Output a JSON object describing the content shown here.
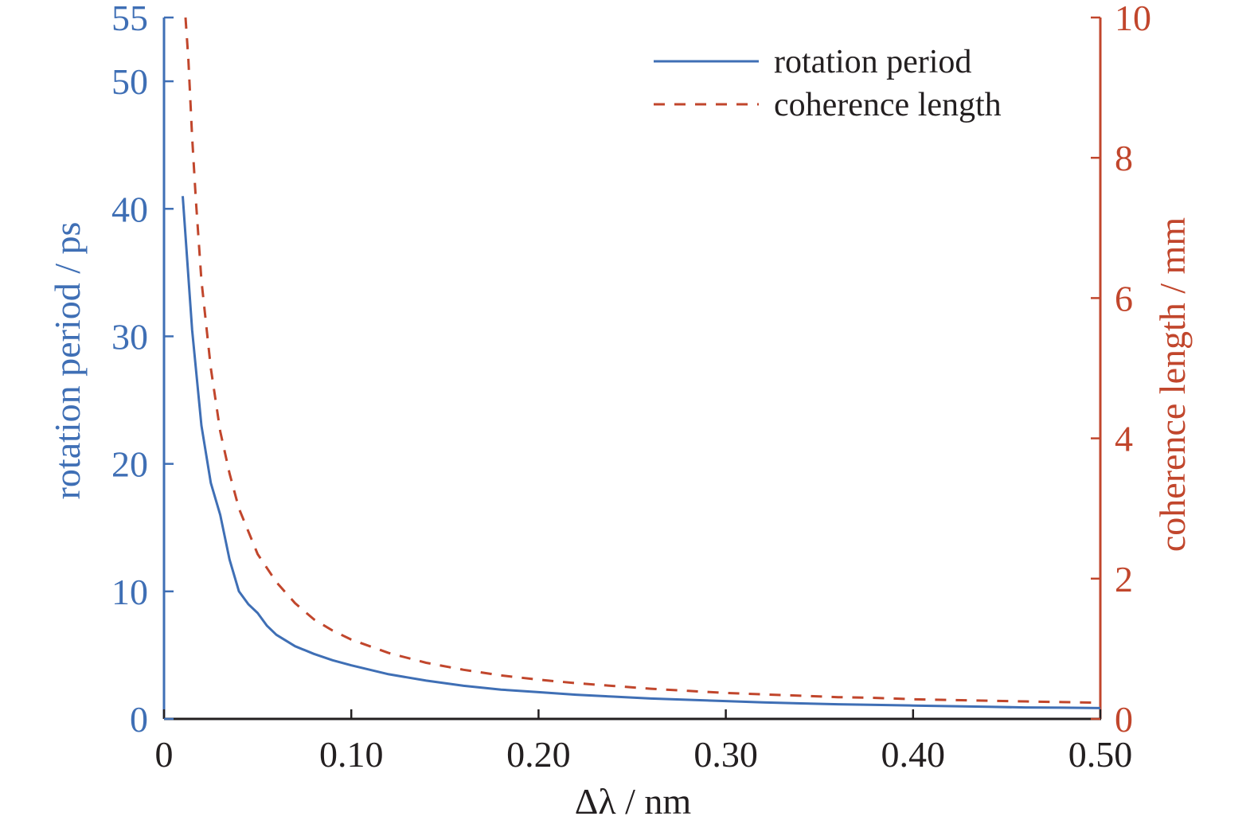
{
  "chart_data": {
    "type": "line",
    "title": "",
    "xlabel": "Δλ / nm",
    "ylabel_left": "rotation period / ps",
    "ylabel_right": "coherence length / mm",
    "xlim": [
      0,
      0.5
    ],
    "ylim_left": [
      0,
      55
    ],
    "ylim_right": [
      0,
      10
    ],
    "x_ticks": [
      0,
      0.1,
      0.2,
      0.3,
      0.4,
      0.5
    ],
    "x_tick_labels": [
      "0",
      "0.10",
      "0.20",
      "0.30",
      "0.40",
      "0.50"
    ],
    "y_left_ticks": [
      0,
      10,
      20,
      30,
      40,
      50,
      55
    ],
    "y_left_tick_labels": [
      "0",
      "10",
      "20",
      "30",
      "40",
      "50",
      "55"
    ],
    "y_right_ticks": [
      0,
      2,
      4,
      6,
      8,
      10
    ],
    "y_right_tick_labels": [
      "0",
      "2",
      "4",
      "6",
      "8",
      "10"
    ],
    "grid": false,
    "legend_position": "top-right",
    "colors": {
      "left_axis": "#3f6fb5",
      "right_axis": "#c1462c",
      "series_rotation": "#3f6fb5",
      "series_coherence": "#c1462c",
      "frame": "#231f20"
    },
    "series": [
      {
        "name": "rotation period",
        "axis": "left",
        "style": "solid",
        "x": [
          0.01,
          0.015,
          0.02,
          0.025,
          0.03,
          0.035,
          0.04,
          0.045,
          0.05,
          0.055,
          0.06,
          0.07,
          0.08,
          0.09,
          0.1,
          0.12,
          0.14,
          0.16,
          0.18,
          0.2,
          0.22,
          0.24,
          0.26,
          0.28,
          0.3,
          0.32,
          0.34,
          0.36,
          0.38,
          0.4,
          0.42,
          0.44,
          0.46,
          0.48,
          0.5
        ],
        "values": [
          41.0,
          30.5,
          23.0,
          18.5,
          16.0,
          12.5,
          10.0,
          9.0,
          8.3,
          7.3,
          6.6,
          5.7,
          5.1,
          4.6,
          4.2,
          3.5,
          3.0,
          2.6,
          2.3,
          2.1,
          1.9,
          1.75,
          1.6,
          1.5,
          1.4,
          1.3,
          1.22,
          1.15,
          1.1,
          1.05,
          1.0,
          0.95,
          0.9,
          0.88,
          0.85
        ]
      },
      {
        "name": "coherence length",
        "axis": "right",
        "style": "dashed",
        "x": [
          0.0115,
          0.013,
          0.015,
          0.017,
          0.02,
          0.025,
          0.03,
          0.035,
          0.04,
          0.05,
          0.06,
          0.07,
          0.08,
          0.09,
          0.1,
          0.12,
          0.14,
          0.16,
          0.18,
          0.2,
          0.22,
          0.24,
          0.26,
          0.28,
          0.3,
          0.32,
          0.34,
          0.36,
          0.38,
          0.4,
          0.42,
          0.44,
          0.46,
          0.48,
          0.5
        ],
        "values": [
          10.0,
          9.4,
          8.3,
          7.4,
          6.25,
          5.0,
          4.1,
          3.5,
          3.0,
          2.35,
          1.95,
          1.65,
          1.42,
          1.26,
          1.13,
          0.94,
          0.8,
          0.7,
          0.62,
          0.56,
          0.51,
          0.47,
          0.43,
          0.4,
          0.37,
          0.35,
          0.33,
          0.31,
          0.3,
          0.28,
          0.27,
          0.26,
          0.25,
          0.24,
          0.23
        ]
      }
    ]
  }
}
